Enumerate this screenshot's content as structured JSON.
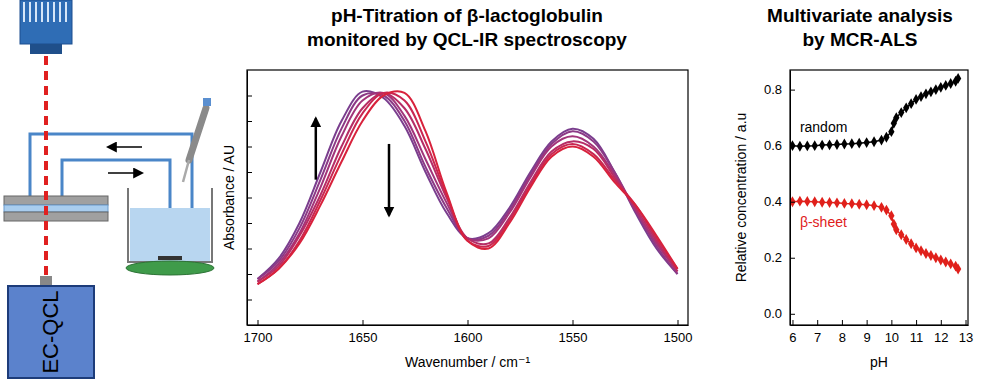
{
  "schematic": {
    "label": "EC-QCL"
  },
  "chart_data": [
    {
      "type": "line",
      "title": "pH-Titration of β-lactoglobulin\nmonitored by QCL-IR spectroscopy",
      "x_label": "Wavenumber / cm⁻¹",
      "y_label": "Absorbance / AU",
      "x": [
        1700,
        1690,
        1680,
        1670,
        1660,
        1650,
        1640,
        1630,
        1620,
        1610,
        1600,
        1590,
        1580,
        1570,
        1560,
        1550,
        1540,
        1530,
        1520,
        1510,
        1500
      ],
      "series": [
        {
          "color": "#7a3e8e",
          "values": [
            0.18,
            0.26,
            0.4,
            0.6,
            0.8,
            0.915,
            0.89,
            0.78,
            0.6,
            0.44,
            0.34,
            0.36,
            0.46,
            0.6,
            0.72,
            0.77,
            0.73,
            0.6,
            0.44,
            0.3,
            0.2
          ]
        },
        {
          "color": "#8c3a86",
          "values": [
            0.18,
            0.25,
            0.38,
            0.57,
            0.77,
            0.9,
            0.9,
            0.8,
            0.62,
            0.46,
            0.34,
            0.35,
            0.45,
            0.59,
            0.71,
            0.76,
            0.72,
            0.6,
            0.45,
            0.31,
            0.2
          ]
        },
        {
          "color": "#a2347a",
          "values": [
            0.17,
            0.24,
            0.36,
            0.54,
            0.74,
            0.88,
            0.91,
            0.82,
            0.65,
            0.48,
            0.34,
            0.34,
            0.44,
            0.58,
            0.7,
            0.74,
            0.7,
            0.59,
            0.45,
            0.32,
            0.21
          ]
        },
        {
          "color": "#b62d66",
          "values": [
            0.17,
            0.23,
            0.35,
            0.51,
            0.7,
            0.85,
            0.91,
            0.85,
            0.69,
            0.5,
            0.34,
            0.32,
            0.42,
            0.56,
            0.68,
            0.72,
            0.69,
            0.58,
            0.46,
            0.33,
            0.21
          ]
        },
        {
          "color": "#c92752",
          "values": [
            0.16,
            0.22,
            0.33,
            0.49,
            0.67,
            0.83,
            0.91,
            0.88,
            0.72,
            0.51,
            0.33,
            0.31,
            0.41,
            0.55,
            0.67,
            0.71,
            0.67,
            0.57,
            0.47,
            0.34,
            0.22
          ]
        },
        {
          "color": "#d8223c",
          "values": [
            0.16,
            0.22,
            0.32,
            0.47,
            0.64,
            0.8,
            0.9,
            0.91,
            0.76,
            0.52,
            0.33,
            0.3,
            0.4,
            0.54,
            0.66,
            0.7,
            0.66,
            0.56,
            0.47,
            0.35,
            0.22
          ]
        }
      ],
      "xlim": [
        1705,
        1495
      ],
      "ylim": [
        0,
        1
      ],
      "xticks": [
        1700,
        1650,
        1600,
        1550,
        1500
      ],
      "yticks": [
        0.1,
        0.2,
        0.3,
        0.4,
        0.5,
        0.6,
        0.7,
        0.8,
        0.9
      ],
      "tick_labels": "x",
      "grid": false
    },
    {
      "type": "line",
      "title": "Multivariate analysis\nby MCR-ALS",
      "x_label": "pH",
      "y_label": "Relative concentration / a.u",
      "x": [
        6.0,
        6.3,
        6.6,
        6.9,
        7.2,
        7.5,
        7.8,
        8.1,
        8.4,
        8.7,
        9.0,
        9.3,
        9.6,
        9.8,
        10.0,
        10.1,
        10.2,
        10.4,
        10.6,
        10.8,
        11.0,
        11.2,
        11.4,
        11.6,
        11.8,
        12.0,
        12.2,
        12.4,
        12.6,
        12.7
      ],
      "series": [
        {
          "name": "random",
          "color": "#000000",
          "marker": "diamond",
          "values": [
            0.6,
            0.598,
            0.599,
            0.6,
            0.602,
            0.603,
            0.604,
            0.606,
            0.607,
            0.609,
            0.611,
            0.614,
            0.62,
            0.63,
            0.65,
            0.68,
            0.7,
            0.718,
            0.735,
            0.75,
            0.765,
            0.775,
            0.785,
            0.792,
            0.8,
            0.808,
            0.815,
            0.822,
            0.83,
            0.84
          ]
        },
        {
          "name": "β-sheet",
          "color": "#e0201b",
          "marker": "diamond",
          "values": [
            0.4,
            0.402,
            0.401,
            0.4,
            0.398,
            0.397,
            0.396,
            0.394,
            0.393,
            0.391,
            0.389,
            0.386,
            0.38,
            0.37,
            0.35,
            0.32,
            0.3,
            0.282,
            0.265,
            0.25,
            0.235,
            0.225,
            0.215,
            0.208,
            0.2,
            0.192,
            0.185,
            0.178,
            0.17,
            0.16
          ]
        }
      ],
      "xlim": [
        5.9,
        13.1
      ],
      "ylim": [
        -0.04,
        0.87
      ],
      "xticks": [
        6,
        7,
        8,
        9,
        10,
        11,
        12,
        13
      ],
      "yticks": [
        {
          "value": 0,
          "label": "0.0"
        },
        0.2,
        0.4,
        0.6,
        0.8
      ],
      "grid": false
    }
  ]
}
